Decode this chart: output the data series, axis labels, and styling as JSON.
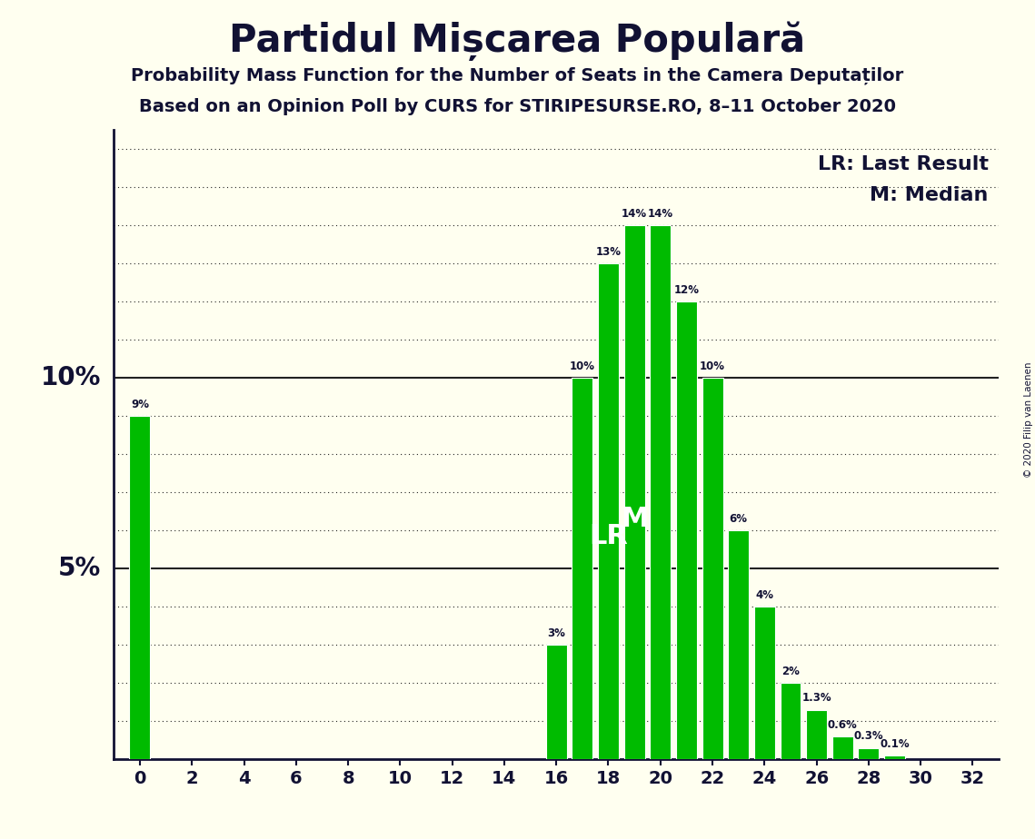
{
  "title": "Partidul Mișcarea Populară",
  "subtitle1": "Probability Mass Function for the Number of Seats in the Camera Deputaților",
  "subtitle2": "Based on an Opinion Poll by CURS for STIRIPESURSE.RO, 8–11 October 2020",
  "copyright": "© 2020 Filip van Laenen",
  "lr_label": "LR: Last Result",
  "m_label": "M: Median",
  "seats": [
    0,
    1,
    2,
    3,
    4,
    5,
    6,
    7,
    8,
    9,
    10,
    11,
    12,
    13,
    14,
    15,
    16,
    17,
    18,
    19,
    20,
    21,
    22,
    23,
    24,
    25,
    26,
    27,
    28,
    29,
    30,
    31,
    32
  ],
  "probabilities": [
    9,
    0,
    0,
    0,
    0,
    0,
    0,
    0,
    0,
    0,
    0,
    0,
    0,
    0,
    0,
    0,
    3,
    10,
    13,
    14,
    14,
    12,
    10,
    6,
    4,
    2,
    1.3,
    0.6,
    0.3,
    0.1,
    0,
    0,
    0
  ],
  "bar_color": "#00bb00",
  "lr_seat": 18,
  "median_seat": 19,
  "background_color": "#fffff0",
  "text_color": "#111133",
  "xticks": [
    0,
    2,
    4,
    6,
    8,
    10,
    12,
    14,
    16,
    18,
    20,
    22,
    24,
    26,
    28,
    30,
    32
  ],
  "grid_color": "#222222",
  "annotation_color": "#111133",
  "ylim_max": 16.5,
  "solid_lines": [
    5,
    10
  ],
  "dotted_yticks": [
    1,
    2,
    3,
    4,
    6,
    7,
    8,
    9,
    11,
    12,
    13,
    14,
    15,
    16
  ]
}
